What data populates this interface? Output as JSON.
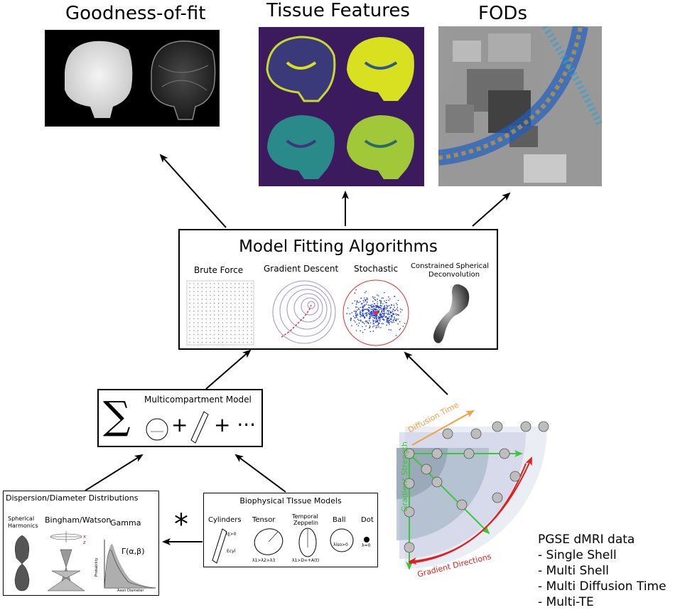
{
  "panels": {
    "goodness": "Goodness-of-fit",
    "tissue": "Tissue Features",
    "fods": "FODs"
  },
  "fitting": {
    "title": "Model Fitting Algorithms",
    "methods": [
      "Brute Force",
      "Gradient Descent",
      "Stochastic",
      "Constrained Spherical",
      "Deconvolution"
    ]
  },
  "multicompartment": {
    "title": "Multicompartment Model",
    "sigma": "∑",
    "plus1": "+",
    "plus2": "+ ···"
  },
  "dispersion": {
    "title": "Dispersion/Diameter Distributions",
    "sh1": "Spherical",
    "sh2": "Harmonics",
    "bw": "Bingham/Watson",
    "gamma": "Gamma",
    "gamma_fn": "Γ(α,β)",
    "prob": "Probability",
    "axon": "Axon Diameter"
  },
  "biophysical": {
    "title": "Biophysical TIssue Models",
    "cylinders": "Cylinders",
    "tensor": "Tensor",
    "temporal1": "Temporal",
    "temporal2": "Zeppelin",
    "ball": "Ball",
    "dot": "Dot",
    "cyl_lambda": "λ∥>0",
    "ecyl": "Ecyl",
    "tensor_rel": "λ1>λ2>λ3",
    "zep_rel": "λ1>D∞+A(t)",
    "ball_rel": "λiso>0",
    "dot_rel": "λ=0"
  },
  "star": "*",
  "acquisition": {
    "diffusion_time": "Diffusion Time",
    "gradient_strength": "Gradient Strength",
    "gradient_directions": "Gradient Directions"
  },
  "pgse": {
    "title": "PGSE dMRI data",
    "items": [
      "- Single Shell",
      "- Multi Shell",
      "- Multi Diffusion Time",
      "- Multi-TE"
    ]
  },
  "colors": {
    "arrow": "#000000",
    "diffusion_time": "#f0a040",
    "gradient_strength": "#3cc63c",
    "gradient_directions": "#e02020",
    "viridis_bg": "#3b1a5e",
    "viridis_mid": "#2a8a8a",
    "viridis_high": "#d8e020"
  }
}
